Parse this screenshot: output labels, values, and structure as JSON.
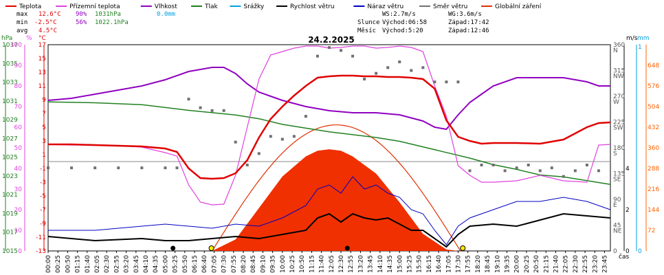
{
  "chart_data": {
    "type": "line",
    "title": "24.2.2025",
    "legend": [
      {
        "label": "Teplota",
        "color": "#e00000"
      },
      {
        "label": "Přízemní teplota",
        "color": "#e040e0"
      },
      {
        "label": "Vlhkost",
        "color": "#9000c0"
      },
      {
        "label": "Tlak",
        "color": "#208020"
      },
      {
        "label": "Srážky",
        "color": "#00a0e0"
      },
      {
        "label": "Rychlost větru",
        "color": "#000000"
      },
      {
        "label": "Náraz větru",
        "color": "#0000c0"
      },
      {
        "label": "Směr větru",
        "color": "#707070"
      },
      {
        "label": "Globální záření",
        "color": "#e03000"
      }
    ],
    "stats": {
      "max": {
        "label": "max",
        "temp": "12.6°C",
        "hum": "90%",
        "press": "1031hPa",
        "rain": "0.0mm"
      },
      "min": {
        "label": "min",
        "temp": "-2.5°C",
        "hum": "56%",
        "press": "1022.1hPa"
      },
      "avg": {
        "label": "avg",
        "temp": "4.5°C"
      }
    },
    "info": {
      "ws": "WS:2.7m/s",
      "wg": "WG:3.6m/s",
      "sun_label": "Slunce",
      "sun_rise": "Východ:06:58",
      "sun_set": "Západ:17:42",
      "moon_label": "Měsíc",
      "moon_rise": "Východ:5:20",
      "moon_set": "Západ:12:46"
    },
    "axes": {
      "hpa": {
        "label": "hPa",
        "ticks": [
          "1037",
          "1035",
          "1033",
          "1031",
          "1029",
          "1027",
          "1025",
          "1023",
          "1021",
          "1019",
          "1017",
          "1015"
        ]
      },
      "pct": {
        "label": "%",
        "ticks": [
          "100",
          "90",
          "80",
          "70",
          "60",
          "50",
          "40",
          "30",
          "20",
          "10",
          "0"
        ]
      },
      "degc": {
        "label": "°C",
        "ticks": [
          "17",
          "15",
          "13",
          "11",
          "9",
          "7",
          "5",
          "3",
          "1",
          "-1",
          "-3",
          "-5",
          "-7",
          "-9",
          "-11",
          "-13"
        ]
      },
      "ms": {
        "label": "m/s",
        "ticks": [
          "4",
          "2",
          "0"
        ]
      },
      "mm": {
        "label": "mm",
        "ticks": [
          "1",
          "0"
        ]
      },
      "dir": {
        "ticks": [
          "360",
          "N",
          "315",
          "NW",
          "270",
          "W",
          "225",
          "SW",
          "180",
          "S",
          "135",
          "SE",
          "90",
          "E",
          "45",
          "NE",
          "0"
        ]
      },
      "rad": {
        "ticks": [
          "648",
          "576",
          "504",
          "432",
          "360",
          "288",
          "216",
          "144",
          "72"
        ]
      },
      "time_label": "čas",
      "x_ticks": [
        "00:00",
        "00:25",
        "00:50",
        "01:15",
        "01:40",
        "02:05",
        "02:30",
        "02:55",
        "03:20",
        "03:45",
        "04:10",
        "04:35",
        "05:00",
        "05:25",
        "05:50",
        "06:15",
        "06:40",
        "07:05",
        "07:30",
        "07:55",
        "08:20",
        "08:45",
        "09:10",
        "09:35",
        "10:00",
        "10:25",
        "10:50",
        "11:15",
        "11:40",
        "12:05",
        "12:30",
        "12:55",
        "13:20",
        "13:45",
        "14:10",
        "14:35",
        "15:00",
        "15:25",
        "15:50",
        "16:15",
        "16:40",
        "17:05",
        "17:30",
        "17:55",
        "18:20",
        "18:45",
        "19:10",
        "19:35",
        "20:00",
        "20:25",
        "20:50",
        "21:15",
        "21:40",
        "22:05",
        "22:30",
        "22:55",
        "23:20",
        "23:45"
      ]
    },
    "series": [
      {
        "name": "Teplota",
        "unit": "°C",
        "x": [
          0,
          1,
          2,
          3,
          4,
          5,
          5.5,
          6,
          6.5,
          7,
          7.5,
          8,
          8.5,
          9,
          9.5,
          10,
          10.5,
          11,
          11.5,
          12,
          12.5,
          13,
          13.5,
          14,
          14.5,
          15,
          15.5,
          16,
          16.5,
          17,
          17.5,
          18,
          18.5,
          19,
          20,
          21,
          22,
          23,
          23.5,
          24
        ],
        "values": [
          2.5,
          2.5,
          2.4,
          2.3,
          2.2,
          1.9,
          1.4,
          -1.0,
          -2.4,
          -2.5,
          -2.4,
          -1.7,
          0.2,
          3.5,
          6.2,
          8.0,
          9.6,
          11.0,
          12.2,
          12.4,
          12.5,
          12.5,
          12.4,
          12.4,
          12.3,
          12.3,
          12.2,
          12.0,
          10.6,
          6.0,
          3.6,
          3.0,
          2.6,
          2.7,
          2.7,
          2.6,
          3.2,
          5.0,
          5.6,
          5.7
        ]
      },
      {
        "name": "Přízemní teplota",
        "unit": "°C",
        "x": [
          0,
          1,
          2,
          3,
          4,
          5,
          5.5,
          6,
          6.5,
          7,
          7.5,
          8,
          8.5,
          9,
          9.5,
          10,
          10.5,
          11,
          11.5,
          12,
          12.5,
          13,
          13.5,
          14,
          14.5,
          15,
          15.5,
          16,
          16.5,
          17,
          17.5,
          18,
          18.5,
          19,
          20,
          21,
          22,
          23,
          23.5,
          24
        ],
        "values": [
          2.5,
          2.4,
          2.4,
          2.3,
          2.1,
          1.3,
          0.8,
          -3.4,
          -5.9,
          -6.3,
          -6.2,
          -2.0,
          5.0,
          12.0,
          15.5,
          16.0,
          16.5,
          16.8,
          16.8,
          16.5,
          16.6,
          16.8,
          16.8,
          16.5,
          16.6,
          16.8,
          16.6,
          16.0,
          11.0,
          6.6,
          -0.6,
          -2.0,
          -3.0,
          -3.0,
          -2.8,
          -2.0,
          -2.8,
          -3.0,
          2.4,
          2.5
        ]
      },
      {
        "name": "Vlhkost",
        "unit": "%",
        "x": [
          0,
          1,
          2,
          3,
          4,
          5,
          6,
          7,
          7.5,
          8,
          8.5,
          9,
          9.5,
          10,
          11,
          12,
          13,
          14,
          15,
          16,
          16.5,
          17,
          17.5,
          18,
          18.5,
          19,
          20,
          21,
          22,
          23,
          23.5,
          24
        ],
        "values": [
          73,
          74,
          76,
          78,
          80,
          83,
          87,
          89,
          89,
          86,
          81,
          77,
          75,
          73,
          70,
          68,
          67,
          67,
          66,
          63,
          60,
          59,
          66,
          72,
          76,
          80,
          84,
          84,
          84,
          82,
          80,
          80
        ]
      },
      {
        "name": "Tlak",
        "unit": "hPa",
        "x": [
          0,
          2,
          4,
          6,
          8,
          9,
          10,
          11,
          12,
          13,
          14,
          15,
          16,
          17,
          18,
          19,
          20,
          21,
          22,
          23,
          24
        ],
        "values": [
          1030.9,
          1030.8,
          1030.6,
          1030.0,
          1029.5,
          1029.1,
          1028.5,
          1028.1,
          1027.7,
          1027.4,
          1027.1,
          1026.7,
          1026.1,
          1025.5,
          1024.9,
          1024.2,
          1023.7,
          1023.1,
          1022.9,
          1022.5,
          1022.1
        ]
      },
      {
        "name": "Rychlost větru",
        "unit": "m/s",
        "x": [
          0,
          2,
          4,
          5,
          6,
          7,
          8,
          9,
          10,
          11,
          11.5,
          12,
          12.5,
          13,
          13.5,
          14,
          14.5,
          15,
          15.5,
          16,
          16.5,
          17,
          17.5,
          18,
          19,
          20,
          21,
          22,
          23,
          24
        ],
        "values": [
          0.7,
          0.5,
          0.6,
          0.5,
          0.5,
          0.6,
          0.7,
          0.6,
          0.8,
          1.0,
          1.6,
          1.8,
          1.4,
          1.8,
          1.6,
          1.5,
          1.6,
          1.3,
          1.0,
          1.0,
          0.6,
          0.2,
          0.8,
          1.2,
          1.3,
          1.2,
          1.5,
          1.8,
          1.7,
          1.6
        ]
      },
      {
        "name": "Náraz větru",
        "unit": "m/s",
        "x": [
          0,
          2,
          4,
          5,
          6,
          7,
          8,
          9,
          10,
          11,
          11.5,
          12,
          12.5,
          13,
          13.5,
          14,
          14.5,
          15,
          15.5,
          16,
          16.5,
          17,
          17.5,
          18,
          19,
          20,
          21,
          22,
          23,
          24
        ],
        "values": [
          1.0,
          1.0,
          1.2,
          1.3,
          1.2,
          1.1,
          1.3,
          1.2,
          1.6,
          2.2,
          3.0,
          3.2,
          2.8,
          3.6,
          3.0,
          3.2,
          2.8,
          2.6,
          2.0,
          1.8,
          1.0,
          0.3,
          1.2,
          1.6,
          2.0,
          2.4,
          2.4,
          2.6,
          2.4,
          2.0
        ]
      },
      {
        "name": "Směr větru",
        "unit": "°",
        "x": [
          0,
          1,
          2,
          3,
          4,
          5,
          5.5,
          6,
          6.5,
          7,
          7.5,
          8,
          8.5,
          9,
          9.5,
          10,
          10.5,
          11,
          11.5,
          12,
          12.5,
          13,
          13.5,
          14,
          14.5,
          15,
          15.5,
          16,
          16.5,
          17,
          17.5,
          18,
          18.5,
          19,
          19.5,
          20,
          20.5,
          21,
          21.5,
          22,
          22.5,
          23,
          23.5
        ],
        "values": [
          145,
          145,
          145,
          145,
          145,
          145,
          145,
          265,
          250,
          245,
          245,
          190,
          150,
          170,
          200,
          195,
          200,
          235,
          340,
          355,
          350,
          340,
          300,
          310,
          320,
          330,
          315,
          320,
          295,
          295,
          295,
          140,
          150,
          150,
          140,
          145,
          150,
          140,
          145,
          130,
          140,
          150,
          140
        ]
      },
      {
        "name": "Globální záření",
        "unit": "W/m²",
        "x": [
          7.0,
          8,
          9,
          10,
          11,
          11.5,
          12,
          12.5,
          13,
          14,
          15,
          16,
          17,
          17.5
        ],
        "values": [
          0,
          40,
          150,
          260,
          330,
          350,
          355,
          350,
          330,
          270,
          170,
          60,
          5,
          0
        ]
      },
      {
        "name": "Srážky",
        "unit": "mm",
        "x": [
          0,
          24
        ],
        "values": [
          0.0,
          0.0
        ]
      }
    ]
  }
}
